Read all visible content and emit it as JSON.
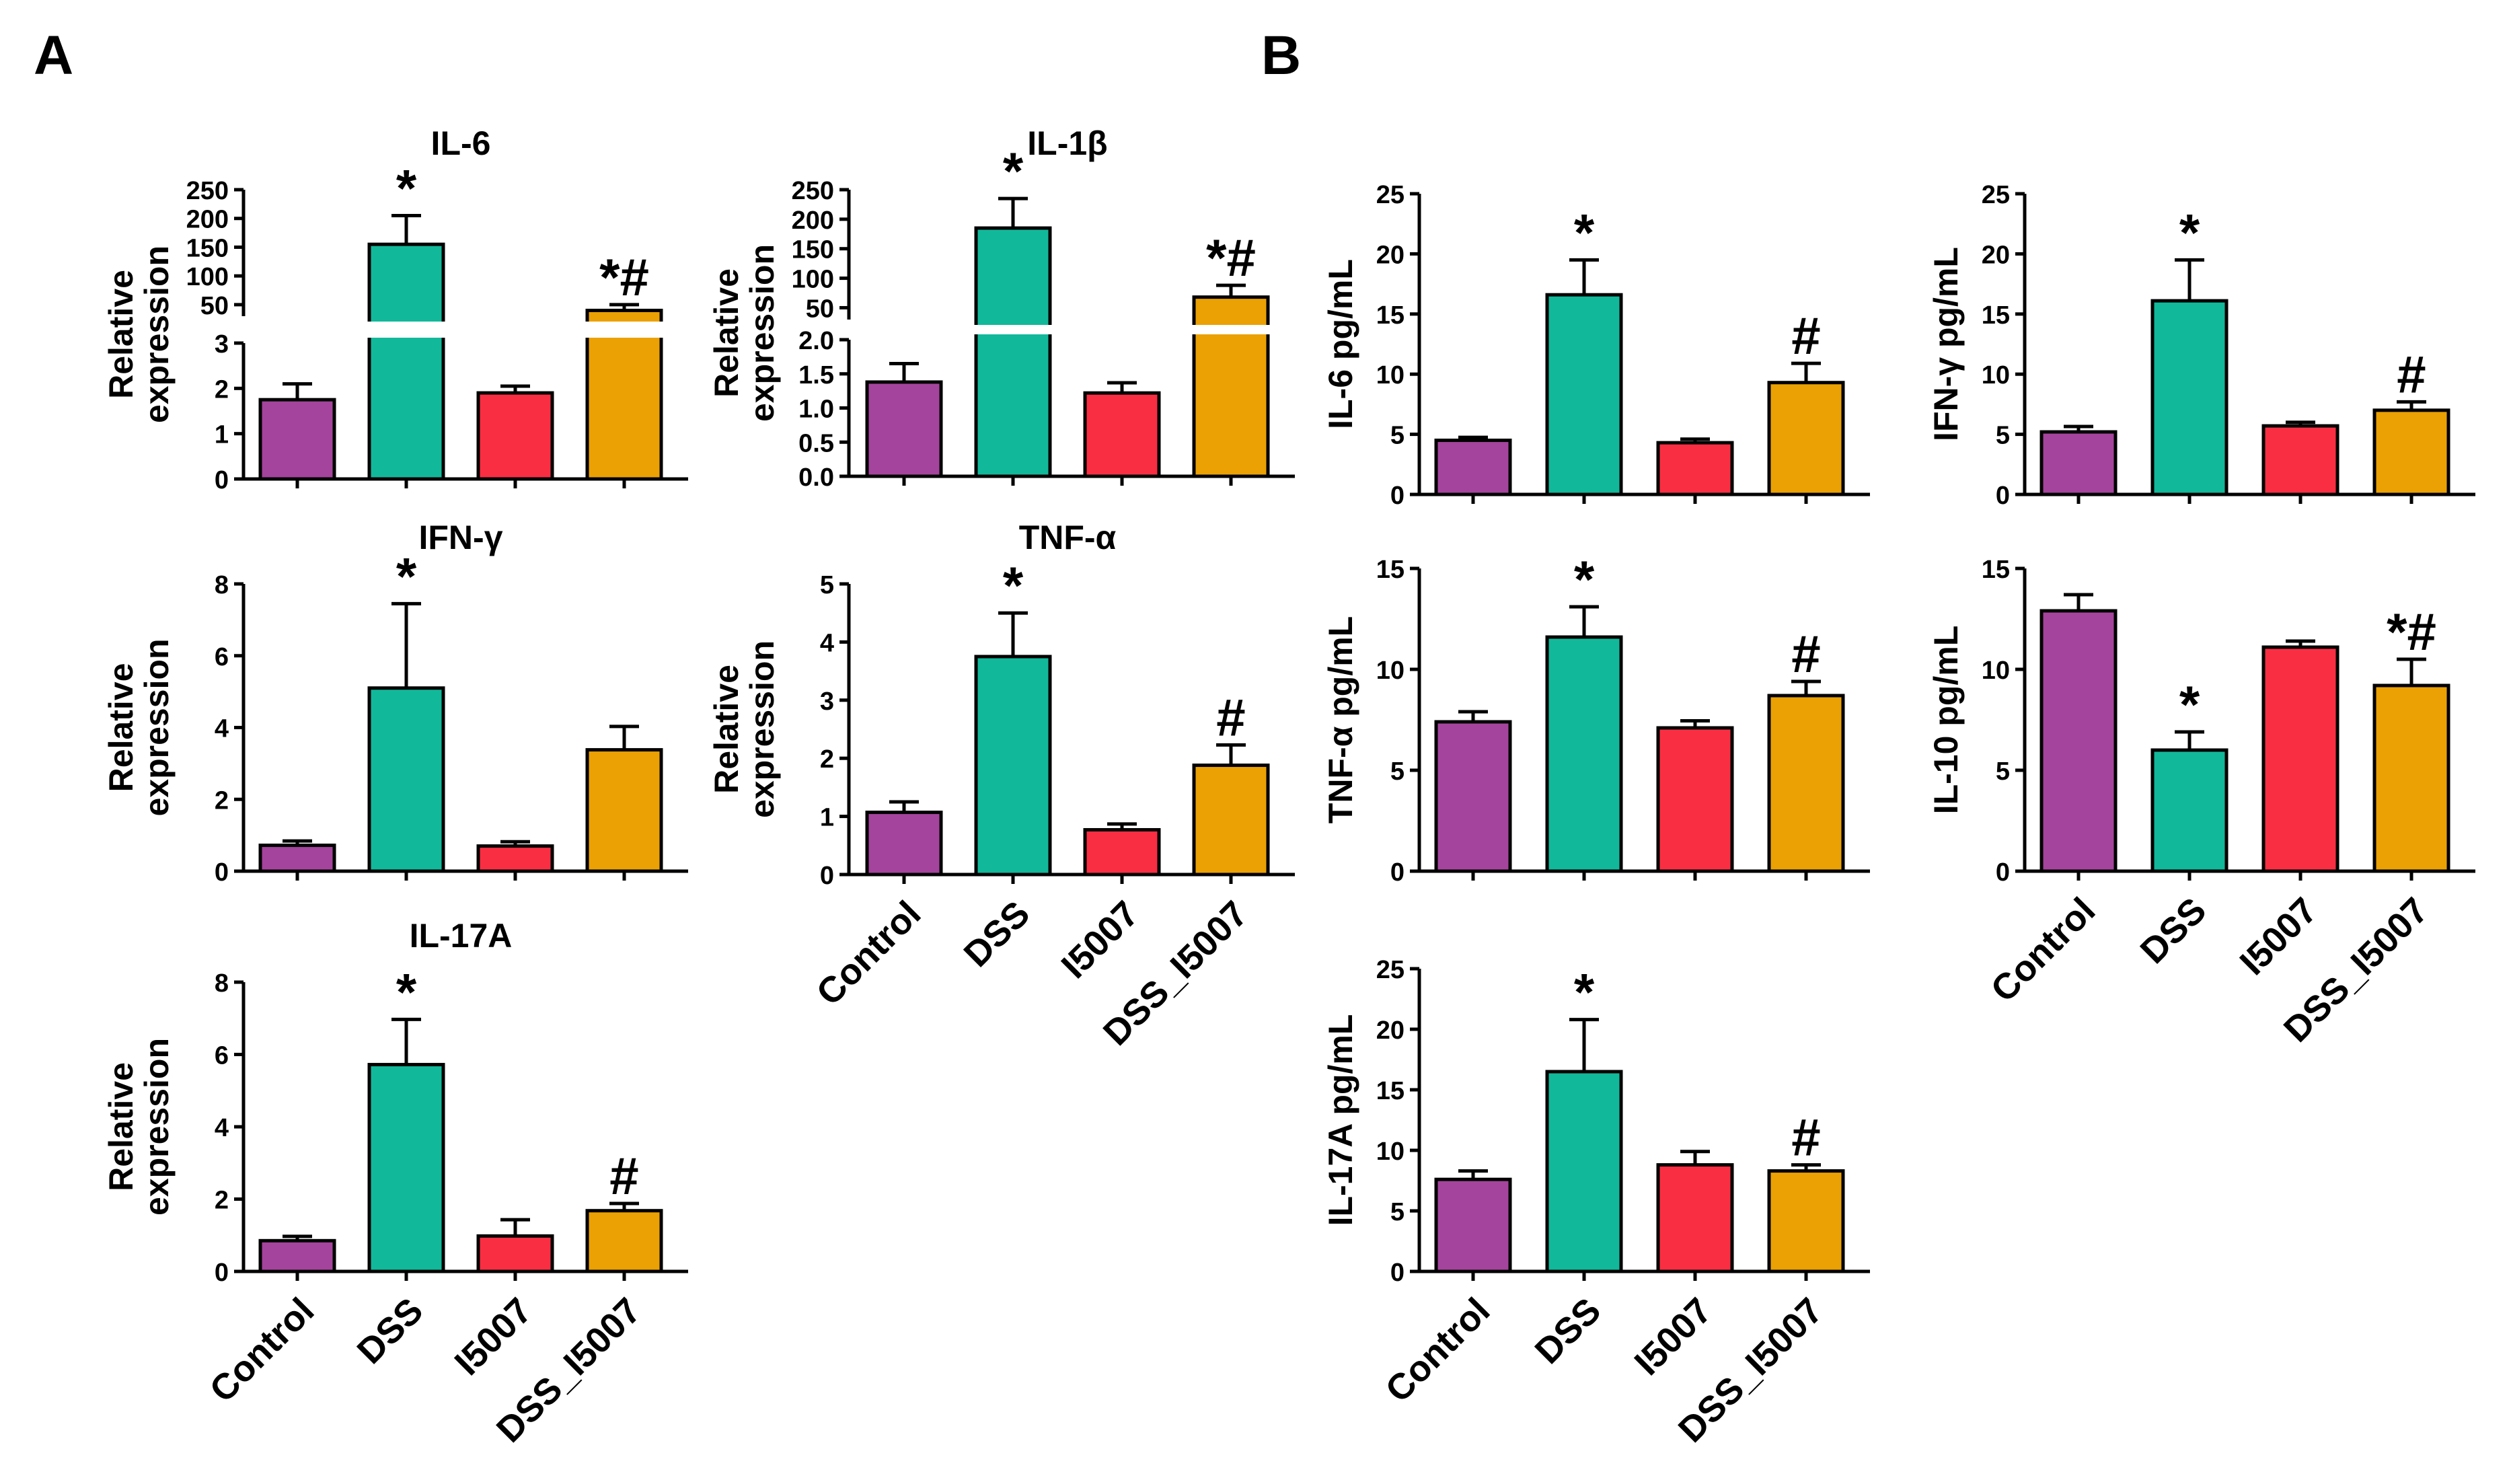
{
  "panels": [
    {
      "label": "A"
    },
    {
      "label": "B"
    }
  ],
  "group_colors": [
    "#A4449C",
    "#12B89A",
    "#F92E43",
    "#EBA103"
  ],
  "chart_data": [
    {
      "id": "a-il6",
      "panel": "A",
      "type": "bar",
      "title": "IL-6",
      "ylabel_lines": [
        "Relative",
        "expression"
      ],
      "categories": [
        "Control",
        "DSS",
        "I5007",
        "DSS_I5007"
      ],
      "values": [
        1.75,
        155,
        1.9,
        40
      ],
      "errors": [
        0.35,
        50,
        0.15,
        10
      ],
      "annotations": [
        "",
        "*",
        "",
        "*#"
      ],
      "broken_axis": true,
      "lower_segment": {
        "ylim": [
          0,
          3
        ],
        "ticks": [
          "0",
          "1",
          "2",
          "3"
        ]
      },
      "upper_segment": {
        "ylim": [
          30,
          250
        ],
        "ticks": [
          "50",
          "100",
          "150",
          "200",
          "250"
        ]
      },
      "show_xlabels": false
    },
    {
      "id": "a-il1b",
      "panel": "A",
      "type": "bar",
      "title": "IL-1β",
      "ylabel_lines": [
        "Relative",
        "expression"
      ],
      "categories": [
        "Control",
        "DSS",
        "I5007",
        "DSS_I5007"
      ],
      "values": [
        1.38,
        185,
        1.22,
        68
      ],
      "errors": [
        0.27,
        50,
        0.15,
        20
      ],
      "annotations": [
        "",
        "*",
        "",
        "*#"
      ],
      "broken_axis": true,
      "lower_segment": {
        "ylim": [
          0,
          2.0
        ],
        "ticks": [
          "0.0",
          "0.5",
          "1.0",
          "1.5",
          "2.0"
        ]
      },
      "upper_segment": {
        "ylim": [
          30,
          250
        ],
        "ticks": [
          "50",
          "100",
          "150",
          "200",
          "250"
        ]
      },
      "show_xlabels": false
    },
    {
      "id": "a-ifng",
      "panel": "A",
      "type": "bar",
      "title": "IFN-γ",
      "ylabel_lines": [
        "Relative",
        "expression"
      ],
      "categories": [
        "Control",
        "DSS",
        "I5007",
        "DSS_I5007"
      ],
      "values": [
        0.72,
        5.1,
        0.7,
        3.38
      ],
      "errors": [
        0.12,
        2.35,
        0.12,
        0.65
      ],
      "annotations": [
        "",
        "*",
        "",
        ""
      ],
      "ylim": [
        0,
        8
      ],
      "yticks": [
        "0",
        "2",
        "4",
        "6",
        "8"
      ],
      "show_xlabels": false
    },
    {
      "id": "a-tnfa",
      "panel": "A",
      "type": "bar",
      "title": "TNF-α",
      "ylabel_lines": [
        "Relative",
        "expression"
      ],
      "categories": [
        "Control",
        "DSS",
        "I5007",
        "DSS_I5007"
      ],
      "values": [
        1.07,
        3.75,
        0.77,
        1.88
      ],
      "errors": [
        0.18,
        0.75,
        0.1,
        0.35
      ],
      "annotations": [
        "",
        "*",
        "",
        "#"
      ],
      "ylim": [
        0,
        5
      ],
      "yticks": [
        "0",
        "1",
        "2",
        "3",
        "4",
        "5"
      ],
      "show_xlabels": true
    },
    {
      "id": "a-il17a",
      "panel": "A",
      "type": "bar",
      "title": "IL-17A",
      "ylabel_lines": [
        "Relative",
        "expression"
      ],
      "categories": [
        "Control",
        "DSS",
        "I5007",
        "DSS_I5007"
      ],
      "values": [
        0.85,
        5.72,
        0.98,
        1.68
      ],
      "errors": [
        0.12,
        1.25,
        0.45,
        0.2
      ],
      "annotations": [
        "",
        "*",
        "",
        "#"
      ],
      "ylim": [
        0,
        8
      ],
      "yticks": [
        "0",
        "2",
        "4",
        "6",
        "8"
      ],
      "show_xlabels": true
    },
    {
      "id": "b-il6",
      "panel": "B",
      "type": "bar",
      "title": "",
      "ylabel_lines": [
        "IL-6 pg/mL"
      ],
      "categories": [
        "Control",
        "DSS",
        "I5007",
        "DSS_I5007"
      ],
      "values": [
        4.5,
        16.6,
        4.3,
        9.3
      ],
      "errors": [
        0.25,
        2.9,
        0.3,
        1.6
      ],
      "annotations": [
        "",
        "*",
        "",
        "#"
      ],
      "ylim": [
        0,
        25
      ],
      "yticks": [
        "0",
        "5",
        "10",
        "15",
        "20",
        "25"
      ],
      "show_xlabels": false
    },
    {
      "id": "b-ifng",
      "panel": "B",
      "type": "bar",
      "title": "",
      "ylabel_lines": [
        "IFN-γ pg/mL"
      ],
      "categories": [
        "Control",
        "DSS",
        "I5007",
        "DSS_I5007"
      ],
      "values": [
        5.2,
        16.1,
        5.7,
        7.0
      ],
      "errors": [
        0.45,
        3.4,
        0.3,
        0.7
      ],
      "annotations": [
        "",
        "*",
        "",
        "#"
      ],
      "ylim": [
        0,
        25
      ],
      "yticks": [
        "0",
        "5",
        "10",
        "15",
        "20",
        "25"
      ],
      "show_xlabels": false
    },
    {
      "id": "b-tnfa",
      "panel": "B",
      "type": "bar",
      "title": "",
      "ylabel_lines": [
        "TNF-α pg/mL"
      ],
      "categories": [
        "Control",
        "DSS",
        "I5007",
        "DSS_I5007"
      ],
      "values": [
        7.4,
        11.6,
        7.1,
        8.7
      ],
      "errors": [
        0.5,
        1.5,
        0.35,
        0.7
      ],
      "annotations": [
        "",
        "*",
        "",
        "#"
      ],
      "ylim": [
        0,
        15
      ],
      "yticks": [
        "0",
        "5",
        "10",
        "15"
      ],
      "show_xlabels": false
    },
    {
      "id": "b-il10",
      "panel": "B",
      "type": "bar",
      "title": "",
      "ylabel_lines": [
        "IL-10 pg/mL"
      ],
      "categories": [
        "Control",
        "DSS",
        "I5007",
        "DSS_I5007"
      ],
      "values": [
        12.9,
        6.0,
        11.1,
        9.2
      ],
      "errors": [
        0.8,
        0.9,
        0.3,
        1.3
      ],
      "annotations": [
        "",
        "*",
        "",
        "*#"
      ],
      "ylim": [
        0,
        15
      ],
      "yticks": [
        "0",
        "5",
        "10",
        "15"
      ],
      "show_xlabels": true
    },
    {
      "id": "b-il17a",
      "panel": "B",
      "type": "bar",
      "title": "",
      "ylabel_lines": [
        "IL-17A pg/mL"
      ],
      "categories": [
        "Control",
        "DSS",
        "I5007",
        "DSS_I5007"
      ],
      "values": [
        7.6,
        16.5,
        8.8,
        8.3
      ],
      "errors": [
        0.7,
        4.3,
        1.1,
        0.5
      ],
      "annotations": [
        "",
        "*",
        "",
        "#"
      ],
      "ylim": [
        0,
        25
      ],
      "yticks": [
        "0",
        "5",
        "10",
        "15",
        "20",
        "25"
      ],
      "show_xlabels": true
    }
  ]
}
